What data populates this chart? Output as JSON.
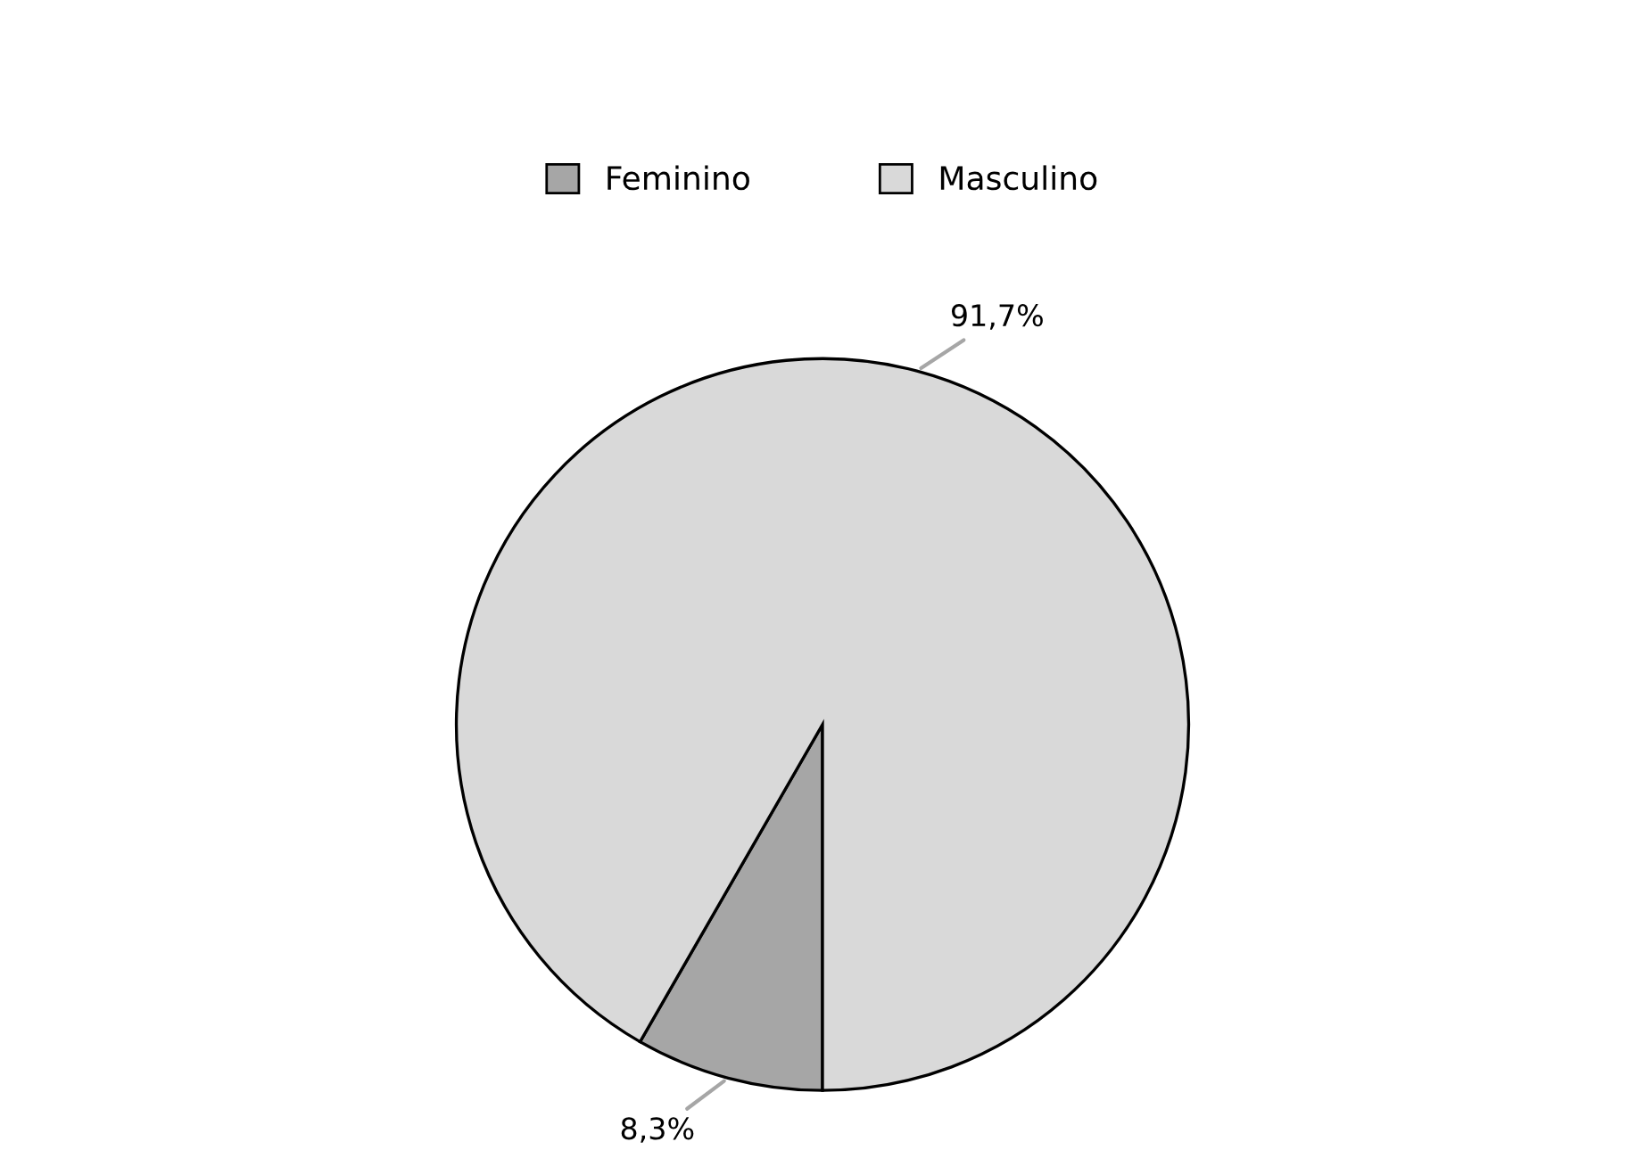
{
  "chart_data": {
    "type": "pie",
    "categories": [
      "Feminino",
      "Masculino"
    ],
    "values": [
      8.3,
      91.7
    ],
    "colors": [
      "#a6a6a6",
      "#d9d9d9"
    ],
    "value_labels": [
      "8,3%",
      "91,7%"
    ],
    "legend": "top"
  }
}
